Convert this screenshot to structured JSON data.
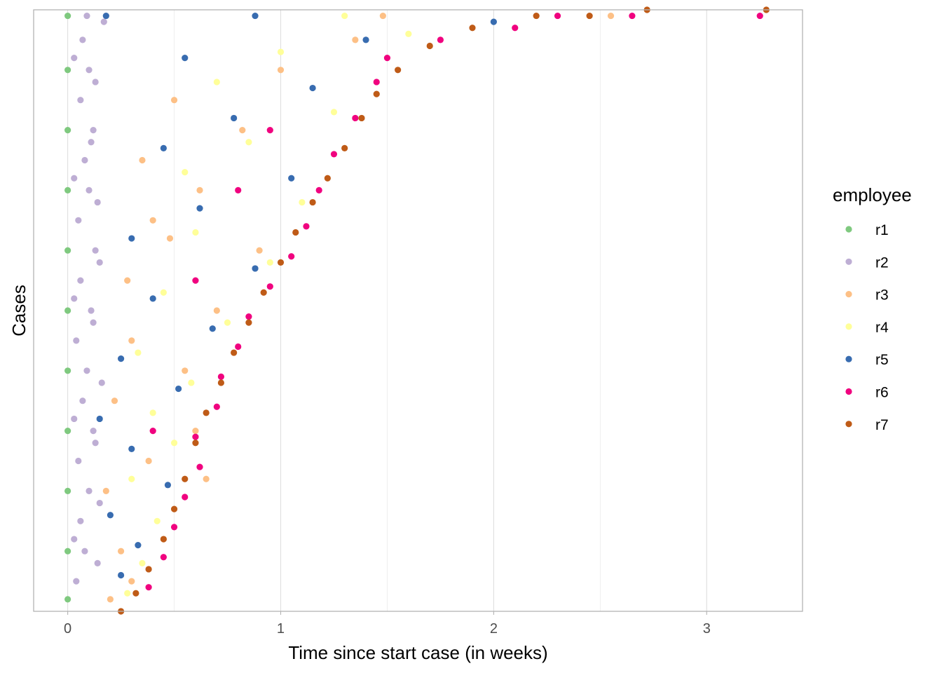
{
  "chart_data": {
    "type": "scatter",
    "title": "",
    "xlabel": "Time since start case (in weeks)",
    "ylabel": "Cases",
    "xlim": [
      -0.16,
      3.45
    ],
    "ylim": [
      0,
      1
    ],
    "x_ticks": [
      0,
      1,
      2,
      3
    ],
    "x_tick_labels": [
      "0",
      "1",
      "2",
      "3"
    ],
    "y_ticks_shown": false,
    "grid": true,
    "grid_axis": "x",
    "legend": {
      "title": "employee",
      "position": "right"
    },
    "series": [
      {
        "name": "r1",
        "color": "#7fc97f",
        "points": [
          [
            0.0,
            0.02
          ],
          [
            0.0,
            0.1
          ],
          [
            0.0,
            0.2
          ],
          [
            0.0,
            0.3
          ],
          [
            0.0,
            0.4
          ],
          [
            0.0,
            0.5
          ],
          [
            0.0,
            0.6
          ],
          [
            0.0,
            0.7
          ],
          [
            0.0,
            0.8
          ],
          [
            0.0,
            0.9
          ],
          [
            0.0,
            0.99
          ]
        ]
      },
      {
        "name": "r2",
        "color": "#beaed4",
        "points": [
          [
            0.04,
            0.05
          ],
          [
            0.08,
            0.1
          ],
          [
            0.06,
            0.15
          ],
          [
            0.1,
            0.2
          ],
          [
            0.05,
            0.25
          ],
          [
            0.12,
            0.3
          ],
          [
            0.07,
            0.35
          ],
          [
            0.09,
            0.4
          ],
          [
            0.04,
            0.45
          ],
          [
            0.11,
            0.5
          ],
          [
            0.06,
            0.55
          ],
          [
            0.13,
            0.6
          ],
          [
            0.05,
            0.65
          ],
          [
            0.1,
            0.7
          ],
          [
            0.08,
            0.75
          ],
          [
            0.12,
            0.8
          ],
          [
            0.06,
            0.85
          ],
          [
            0.1,
            0.9
          ],
          [
            0.07,
            0.95
          ],
          [
            0.09,
            0.99
          ],
          [
            0.14,
            0.08
          ],
          [
            0.15,
            0.18
          ],
          [
            0.13,
            0.28
          ],
          [
            0.16,
            0.38
          ],
          [
            0.12,
            0.48
          ],
          [
            0.15,
            0.58
          ],
          [
            0.14,
            0.68
          ],
          [
            0.11,
            0.78
          ],
          [
            0.13,
            0.88
          ],
          [
            0.17,
            0.98
          ],
          [
            0.03,
            0.12
          ],
          [
            0.03,
            0.32
          ],
          [
            0.03,
            0.52
          ],
          [
            0.03,
            0.72
          ],
          [
            0.03,
            0.92
          ]
        ]
      },
      {
        "name": "r3",
        "color": "#fdc086",
        "points": [
          [
            0.2,
            0.02
          ],
          [
            0.3,
            0.05
          ],
          [
            0.25,
            0.1
          ],
          [
            0.45,
            0.12
          ],
          [
            0.18,
            0.2
          ],
          [
            0.38,
            0.25
          ],
          [
            0.6,
            0.3
          ],
          [
            0.22,
            0.35
          ],
          [
            0.55,
            0.4
          ],
          [
            0.3,
            0.45
          ],
          [
            0.7,
            0.5
          ],
          [
            0.28,
            0.55
          ],
          [
            0.9,
            0.6
          ],
          [
            0.4,
            0.65
          ],
          [
            0.62,
            0.7
          ],
          [
            0.35,
            0.75
          ],
          [
            0.82,
            0.8
          ],
          [
            0.5,
            0.85
          ],
          [
            1.0,
            0.9
          ],
          [
            1.35,
            0.95
          ],
          [
            2.55,
            0.99
          ],
          [
            1.48,
            0.99
          ],
          [
            0.65,
            0.22
          ],
          [
            0.48,
            0.62
          ]
        ]
      },
      {
        "name": "r4",
        "color": "#ffff99",
        "points": [
          [
            0.28,
            0.03
          ],
          [
            0.35,
            0.08
          ],
          [
            0.42,
            0.15
          ],
          [
            0.3,
            0.22
          ],
          [
            0.5,
            0.28
          ],
          [
            0.4,
            0.33
          ],
          [
            0.58,
            0.38
          ],
          [
            0.33,
            0.43
          ],
          [
            0.75,
            0.48
          ],
          [
            0.45,
            0.53
          ],
          [
            0.95,
            0.58
          ],
          [
            0.6,
            0.63
          ],
          [
            1.1,
            0.68
          ],
          [
            0.55,
            0.73
          ],
          [
            0.85,
            0.78
          ],
          [
            1.25,
            0.83
          ],
          [
            0.7,
            0.88
          ],
          [
            1.0,
            0.93
          ],
          [
            1.6,
            0.96
          ],
          [
            1.3,
            0.99
          ]
        ]
      },
      {
        "name": "r5",
        "color": "#386cb0",
        "points": [
          [
            0.25,
            0.06
          ],
          [
            0.33,
            0.11
          ],
          [
            0.2,
            0.16
          ],
          [
            0.47,
            0.21
          ],
          [
            0.3,
            0.27
          ],
          [
            0.15,
            0.32
          ],
          [
            0.52,
            0.37
          ],
          [
            0.25,
            0.42
          ],
          [
            0.68,
            0.47
          ],
          [
            0.4,
            0.52
          ],
          [
            0.88,
            0.57
          ],
          [
            0.3,
            0.62
          ],
          [
            0.62,
            0.67
          ],
          [
            1.05,
            0.72
          ],
          [
            0.45,
            0.77
          ],
          [
            0.78,
            0.82
          ],
          [
            1.15,
            0.87
          ],
          [
            0.55,
            0.92
          ],
          [
            1.4,
            0.95
          ],
          [
            2.0,
            0.98
          ],
          [
            0.18,
            0.99
          ],
          [
            0.88,
            0.99
          ]
        ]
      },
      {
        "name": "r6",
        "color": "#f0027f",
        "points": [
          [
            0.38,
            0.04
          ],
          [
            0.45,
            0.09
          ],
          [
            0.5,
            0.14
          ],
          [
            0.55,
            0.19
          ],
          [
            0.62,
            0.24
          ],
          [
            0.6,
            0.29
          ],
          [
            0.7,
            0.34
          ],
          [
            0.72,
            0.39
          ],
          [
            0.8,
            0.44
          ],
          [
            0.85,
            0.49
          ],
          [
            0.95,
            0.54
          ],
          [
            1.05,
            0.59
          ],
          [
            1.12,
            0.64
          ],
          [
            1.18,
            0.7
          ],
          [
            1.25,
            0.76
          ],
          [
            1.35,
            0.82
          ],
          [
            1.45,
            0.88
          ],
          [
            1.5,
            0.92
          ],
          [
            1.75,
            0.95
          ],
          [
            2.1,
            0.97
          ],
          [
            2.3,
            0.99
          ],
          [
            2.65,
            0.99
          ],
          [
            3.25,
            0.99
          ],
          [
            0.4,
            0.3
          ],
          [
            0.6,
            0.55
          ],
          [
            0.8,
            0.7
          ],
          [
            0.95,
            0.8
          ]
        ]
      },
      {
        "name": "r7",
        "color": "#bf5b17",
        "points": [
          [
            0.25,
            0.0
          ],
          [
            0.32,
            0.03
          ],
          [
            0.38,
            0.07
          ],
          [
            0.45,
            0.12
          ],
          [
            0.5,
            0.17
          ],
          [
            0.55,
            0.22
          ],
          [
            0.6,
            0.28
          ],
          [
            0.65,
            0.33
          ],
          [
            0.72,
            0.38
          ],
          [
            0.78,
            0.43
          ],
          [
            0.85,
            0.48
          ],
          [
            0.92,
            0.53
          ],
          [
            1.0,
            0.58
          ],
          [
            1.07,
            0.63
          ],
          [
            1.15,
            0.68
          ],
          [
            1.22,
            0.72
          ],
          [
            1.3,
            0.77
          ],
          [
            1.38,
            0.82
          ],
          [
            1.45,
            0.86
          ],
          [
            1.55,
            0.9
          ],
          [
            1.7,
            0.94
          ],
          [
            1.9,
            0.97
          ],
          [
            2.2,
            0.99
          ],
          [
            2.45,
            0.99
          ],
          [
            2.72,
            1.0
          ],
          [
            3.28,
            1.0
          ]
        ]
      }
    ]
  }
}
